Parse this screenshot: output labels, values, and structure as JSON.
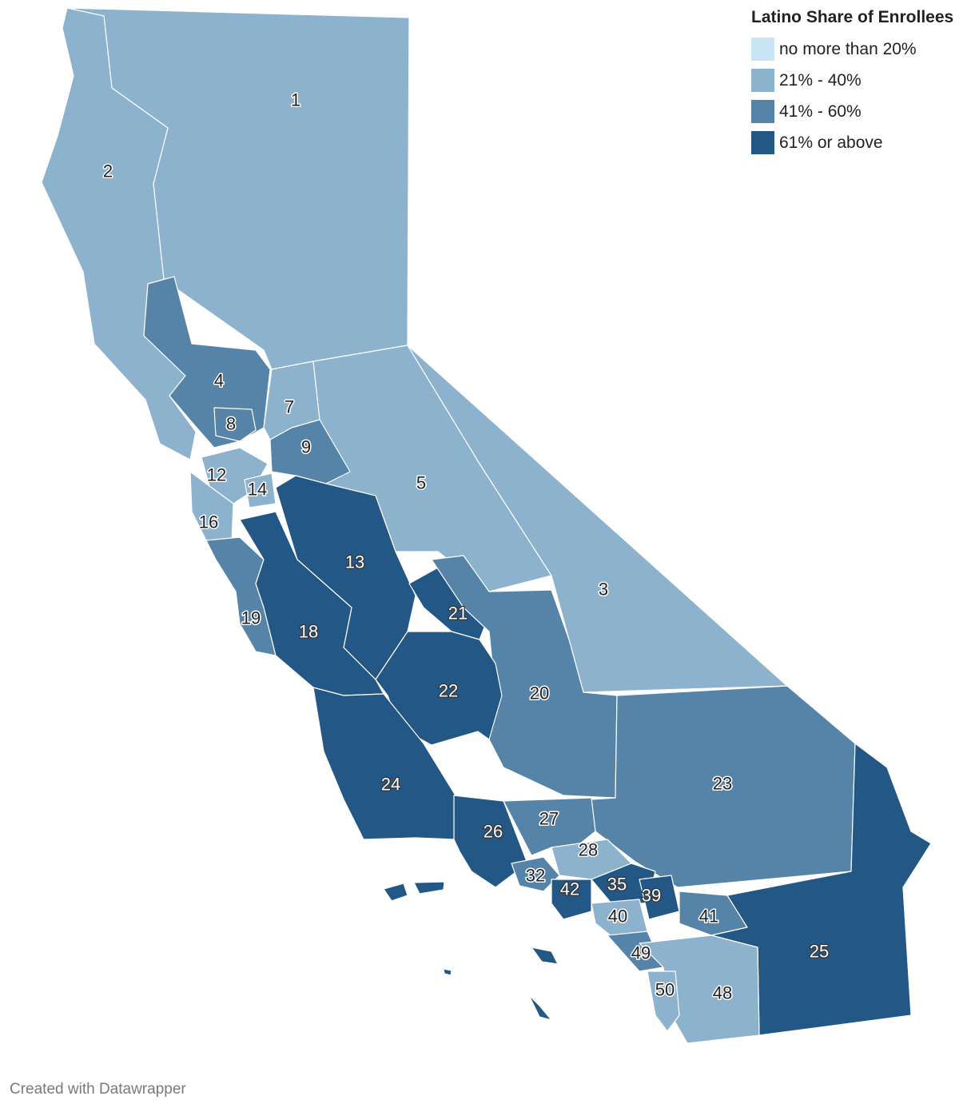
{
  "legend": {
    "title": "Latino Share of Enrollees",
    "items": [
      {
        "label": "no more than 20%",
        "color": "#c9e4f5"
      },
      {
        "label": "21% - 40%",
        "color": "#8db2ce"
      },
      {
        "label": "41% - 60%",
        "color": "#5584a8"
      },
      {
        "label": "61% or above",
        "color": "#235786"
      }
    ]
  },
  "regions": [
    {
      "id": "1",
      "label": "1",
      "category": "21% - 40%"
    },
    {
      "id": "2",
      "label": "2",
      "category": "21% - 40%"
    },
    {
      "id": "3",
      "label": "3",
      "category": "21% - 40%"
    },
    {
      "id": "4",
      "label": "4",
      "category": "41% - 60%"
    },
    {
      "id": "5",
      "label": "5",
      "category": "21% - 40%"
    },
    {
      "id": "7",
      "label": "7",
      "category": "21% - 40%"
    },
    {
      "id": "8",
      "label": "8",
      "category": "41% - 60%"
    },
    {
      "id": "9",
      "label": "9",
      "category": "41% - 60%"
    },
    {
      "id": "12",
      "label": "12",
      "category": "21% - 40%"
    },
    {
      "id": "13",
      "label": "13",
      "category": "61% or above"
    },
    {
      "id": "14",
      "label": "14",
      "category": "21% - 40%"
    },
    {
      "id": "16",
      "label": "16",
      "category": "21% - 40%"
    },
    {
      "id": "18",
      "label": "18",
      "category": "61% or above"
    },
    {
      "id": "19",
      "label": "19",
      "category": "41% - 60%"
    },
    {
      "id": "20",
      "label": "20",
      "category": "41% - 60%"
    },
    {
      "id": "21",
      "label": "21",
      "category": "61% or above"
    },
    {
      "id": "22",
      "label": "22",
      "category": "61% or above"
    },
    {
      "id": "23",
      "label": "23",
      "category": "41% - 60%"
    },
    {
      "id": "24",
      "label": "24",
      "category": "61% or above"
    },
    {
      "id": "25",
      "label": "25",
      "category": "61% or above"
    },
    {
      "id": "26",
      "label": "26",
      "category": "61% or above"
    },
    {
      "id": "27",
      "label": "27",
      "category": "41% - 60%"
    },
    {
      "id": "28",
      "label": "28",
      "category": "21% - 40%"
    },
    {
      "id": "32",
      "label": "32",
      "category": "41% - 60%"
    },
    {
      "id": "35",
      "label": "35",
      "category": "61% or above"
    },
    {
      "id": "39",
      "label": "39",
      "category": "61% or above"
    },
    {
      "id": "40",
      "label": "40",
      "category": "21% - 40%"
    },
    {
      "id": "41",
      "label": "41",
      "category": "41% - 60%"
    },
    {
      "id": "42",
      "label": "42",
      "category": "61% or above"
    },
    {
      "id": "48",
      "label": "48",
      "category": "21% - 40%"
    },
    {
      "id": "49",
      "label": "49",
      "category": "41% - 60%"
    },
    {
      "id": "50",
      "label": "50",
      "category": "21% - 40%"
    }
  ],
  "credit": "Created with Datawrapper"
}
